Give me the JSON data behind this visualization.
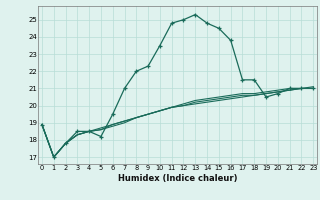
{
  "xlabel": "Humidex (Indice chaleur)",
  "bg_color": "#dff2ee",
  "grid_color": "#b8ddd6",
  "line_color": "#1a6b5a",
  "x_ticks": [
    0,
    1,
    2,
    3,
    4,
    5,
    6,
    7,
    8,
    9,
    10,
    11,
    12,
    13,
    14,
    15,
    16,
    17,
    18,
    19,
    20,
    21,
    22,
    23
  ],
  "y_ticks": [
    17,
    18,
    19,
    20,
    21,
    22,
    23,
    24,
    25
  ],
  "ylim": [
    16.6,
    25.8
  ],
  "xlim": [
    -0.3,
    23.3
  ],
  "lines": [
    {
      "x": [
        0,
        1,
        2,
        3,
        4,
        5,
        6,
        7,
        8,
        9,
        10,
        11,
        12,
        13,
        14,
        15,
        16,
        17,
        18,
        19,
        20,
        21,
        22,
        23
      ],
      "y": [
        18.9,
        17.0,
        17.8,
        18.5,
        18.5,
        18.2,
        19.5,
        21.0,
        22.0,
        22.3,
        23.5,
        24.8,
        25.0,
        25.3,
        24.8,
        24.5,
        23.8,
        21.5,
        21.5,
        20.5,
        20.7,
        21.0,
        21.0,
        21.0
      ],
      "marker": true,
      "lw": 0.9
    },
    {
      "x": [
        0,
        1,
        2,
        3,
        4,
        5,
        6,
        7,
        8,
        9,
        10,
        11,
        12,
        13,
        14,
        15,
        16,
        17,
        18,
        19,
        20,
        21,
        22,
        23
      ],
      "y": [
        18.9,
        17.0,
        17.8,
        18.3,
        18.5,
        18.6,
        18.8,
        19.0,
        19.3,
        19.5,
        19.7,
        19.9,
        20.1,
        20.3,
        20.4,
        20.5,
        20.6,
        20.7,
        20.7,
        20.8,
        20.9,
        21.0,
        21.0,
        21.0
      ],
      "marker": false,
      "lw": 0.8
    },
    {
      "x": [
        0,
        1,
        2,
        3,
        4,
        5,
        6,
        7,
        8,
        9,
        10,
        11,
        12,
        13,
        14,
        15,
        16,
        17,
        18,
        19,
        20,
        21,
        22,
        23
      ],
      "y": [
        18.9,
        17.0,
        17.8,
        18.3,
        18.5,
        18.6,
        18.9,
        19.1,
        19.3,
        19.5,
        19.7,
        19.9,
        20.0,
        20.1,
        20.2,
        20.3,
        20.4,
        20.5,
        20.6,
        20.7,
        20.8,
        20.9,
        21.0,
        21.0
      ],
      "marker": false,
      "lw": 0.8
    },
    {
      "x": [
        0,
        1,
        2,
        3,
        4,
        5,
        6,
        7,
        8,
        9,
        10,
        11,
        12,
        13,
        14,
        15,
        16,
        17,
        18,
        19,
        20,
        21,
        22,
        23
      ],
      "y": [
        18.9,
        17.0,
        17.8,
        18.3,
        18.5,
        18.7,
        18.9,
        19.1,
        19.3,
        19.5,
        19.7,
        19.9,
        20.0,
        20.2,
        20.3,
        20.4,
        20.5,
        20.6,
        20.6,
        20.7,
        20.8,
        20.9,
        21.0,
        21.1
      ],
      "marker": false,
      "lw": 0.8
    }
  ]
}
